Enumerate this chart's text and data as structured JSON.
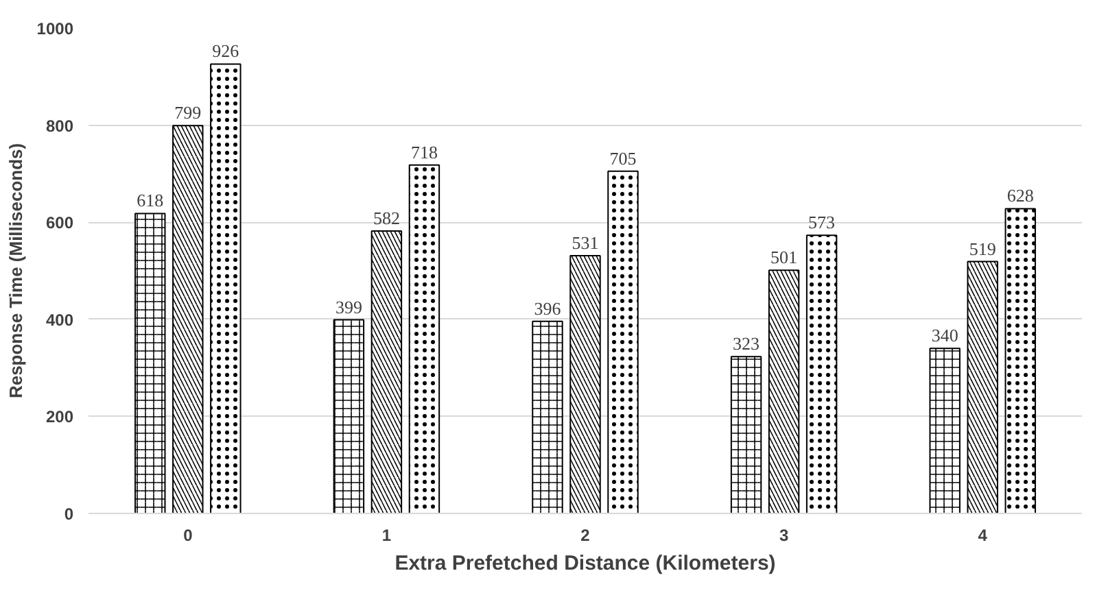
{
  "chart_data": {
    "type": "bar",
    "xlabel": "Extra Prefetched Distance (Kilometers)",
    "ylabel": "Response Time (Milliseconds)",
    "categories": [
      "0",
      "1",
      "2",
      "3",
      "4"
    ],
    "series": [
      {
        "color": "#000000",
        "values": [
          618,
          399,
          396,
          323,
          340
        ]
      },
      {
        "color": "#000000",
        "values": [
          799,
          582,
          531,
          501,
          519
        ]
      },
      {
        "color": "#000000",
        "values": [
          926,
          718,
          705,
          573,
          628
        ]
      }
    ],
    "ylim": [
      0,
      1000
    ],
    "yticks": [
      0,
      200,
      400,
      600,
      800,
      1000
    ],
    "grid": "y",
    "data_labels": true
  }
}
